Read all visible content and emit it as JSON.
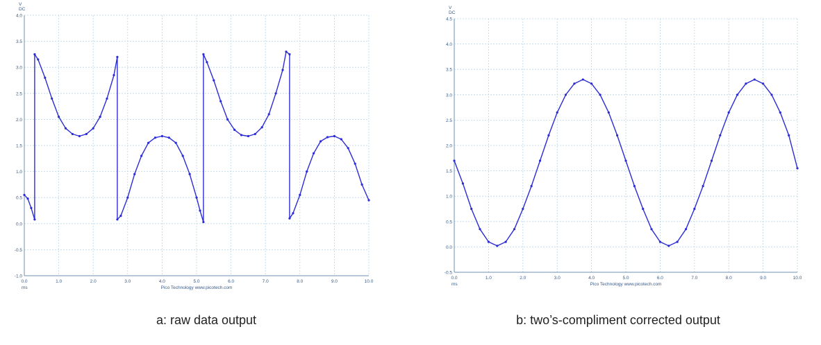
{
  "colors": {
    "trace": "#2b2bd6",
    "grid": "#b9d6e6",
    "axis": "#6d8fb0",
    "text": "#3a5b86"
  },
  "chart_data": [
    {
      "type": "line",
      "caption": "a: raw data output",
      "unit_label": [
        "V",
        "DC"
      ],
      "x_unit": "ms",
      "footer": "Pico Technology  www.picotech.com",
      "xlim": [
        0,
        10
      ],
      "ylim": [
        -1.0,
        4.0
      ],
      "x_ticks": [
        "0.0",
        "1.0",
        "2.0",
        "3.0",
        "4.0",
        "5.0",
        "6.0",
        "7.0",
        "8.0",
        "9.0",
        "10.0"
      ],
      "y_ticks": [
        "-1.0",
        "-0.5",
        "0.0",
        "0.5",
        "1.0",
        "1.5",
        "2.0",
        "2.5",
        "3.0",
        "3.5",
        "4.0"
      ],
      "grid": true,
      "series": [
        {
          "x": [
            0.0,
            0.1,
            0.2,
            0.3,
            0.3,
            0.4,
            0.6,
            0.8,
            1.0,
            1.2,
            1.4,
            1.6,
            1.8,
            2.0,
            2.2,
            2.4,
            2.6,
            2.7,
            2.7,
            2.8,
            3.0,
            3.2,
            3.4,
            3.6,
            3.8,
            4.0,
            4.2,
            4.4,
            4.6,
            4.8,
            5.0,
            5.1,
            5.2,
            5.2,
            5.3,
            5.5,
            5.7,
            5.9,
            6.1,
            6.3,
            6.5,
            6.7,
            6.9,
            7.1,
            7.3,
            7.5,
            7.6,
            7.7,
            7.7,
            7.8,
            8.0,
            8.2,
            8.4,
            8.6,
            8.8,
            9.0,
            9.2,
            9.4,
            9.6,
            9.8,
            10.0
          ],
          "y": [
            0.55,
            0.48,
            0.3,
            0.08,
            3.25,
            3.15,
            2.8,
            2.4,
            2.05,
            1.83,
            1.72,
            1.68,
            1.72,
            1.83,
            2.05,
            2.4,
            2.85,
            3.2,
            0.08,
            0.15,
            0.5,
            0.95,
            1.3,
            1.55,
            1.65,
            1.68,
            1.65,
            1.55,
            1.3,
            0.95,
            0.5,
            0.25,
            0.03,
            3.25,
            3.1,
            2.75,
            2.35,
            2.0,
            1.8,
            1.7,
            1.68,
            1.72,
            1.85,
            2.1,
            2.5,
            2.95,
            3.3,
            3.25,
            0.1,
            0.2,
            0.55,
            1.0,
            1.35,
            1.58,
            1.66,
            1.68,
            1.62,
            1.45,
            1.15,
            0.75,
            0.45
          ]
        }
      ]
    },
    {
      "type": "line",
      "caption": "b: two’s-compliment corrected output",
      "unit_label": [
        "V",
        "DC"
      ],
      "x_unit": "ms",
      "footer": "Pico Technology  www.picotech.com",
      "xlim": [
        0,
        10
      ],
      "ylim": [
        -0.5,
        4.5
      ],
      "x_ticks": [
        "0.0",
        "1.0",
        "2.0",
        "3.0",
        "4.0",
        "5.0",
        "6.0",
        "7.0",
        "8.0",
        "9.0",
        "10.0"
      ],
      "y_ticks": [
        "-0.5",
        "0.0",
        "0.5",
        "1.0",
        "1.5",
        "2.0",
        "2.5",
        "3.0",
        "3.5",
        "4.0",
        "4.5"
      ],
      "grid": true,
      "series": [
        {
          "x": [
            0.0,
            0.25,
            0.5,
            0.75,
            1.0,
            1.25,
            1.5,
            1.75,
            2.0,
            2.25,
            2.5,
            2.75,
            3.0,
            3.25,
            3.5,
            3.75,
            4.0,
            4.25,
            4.5,
            4.75,
            5.0,
            5.25,
            5.5,
            5.75,
            6.0,
            6.25,
            6.5,
            6.75,
            7.0,
            7.25,
            7.5,
            7.75,
            8.0,
            8.25,
            8.5,
            8.75,
            9.0,
            9.25,
            9.5,
            9.75,
            10.0
          ],
          "y": [
            1.7,
            1.25,
            0.75,
            0.35,
            0.1,
            0.02,
            0.1,
            0.35,
            0.75,
            1.2,
            1.7,
            2.2,
            2.65,
            3.0,
            3.22,
            3.3,
            3.22,
            3.0,
            2.65,
            2.2,
            1.7,
            1.2,
            0.75,
            0.35,
            0.1,
            0.02,
            0.1,
            0.35,
            0.75,
            1.2,
            1.7,
            2.2,
            2.65,
            3.0,
            3.22,
            3.3,
            3.22,
            3.0,
            2.65,
            2.2,
            1.55
          ]
        }
      ]
    }
  ]
}
